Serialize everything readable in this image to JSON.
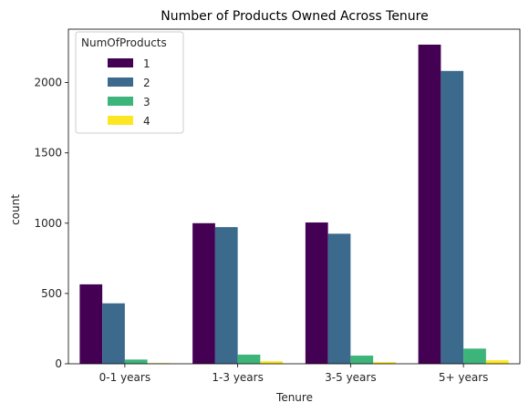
{
  "chart_data": {
    "type": "bar",
    "title": "Number of Products Owned Across Tenure",
    "xlabel": "Tenure",
    "ylabel": "count",
    "categories": [
      "0-1 years",
      "1-3 years",
      "3-5 years",
      "5+ years"
    ],
    "ylim": [
      0,
      2380
    ],
    "yticks": [
      0,
      500,
      1000,
      1500,
      2000
    ],
    "grid": false,
    "legend": {
      "title": "NumOfProducts",
      "placement": "top-left"
    },
    "series": [
      {
        "name": "1",
        "color": "#440154",
        "values": [
          565,
          1000,
          1005,
          2270
        ]
      },
      {
        "name": "2",
        "color": "#3b6a8c",
        "values": [
          430,
          972,
          925,
          2083
        ]
      },
      {
        "name": "3",
        "color": "#3db47a",
        "values": [
          30,
          65,
          58,
          108
        ]
      },
      {
        "name": "4",
        "color": "#fde725",
        "values": [
          5,
          18,
          12,
          25
        ]
      }
    ]
  }
}
